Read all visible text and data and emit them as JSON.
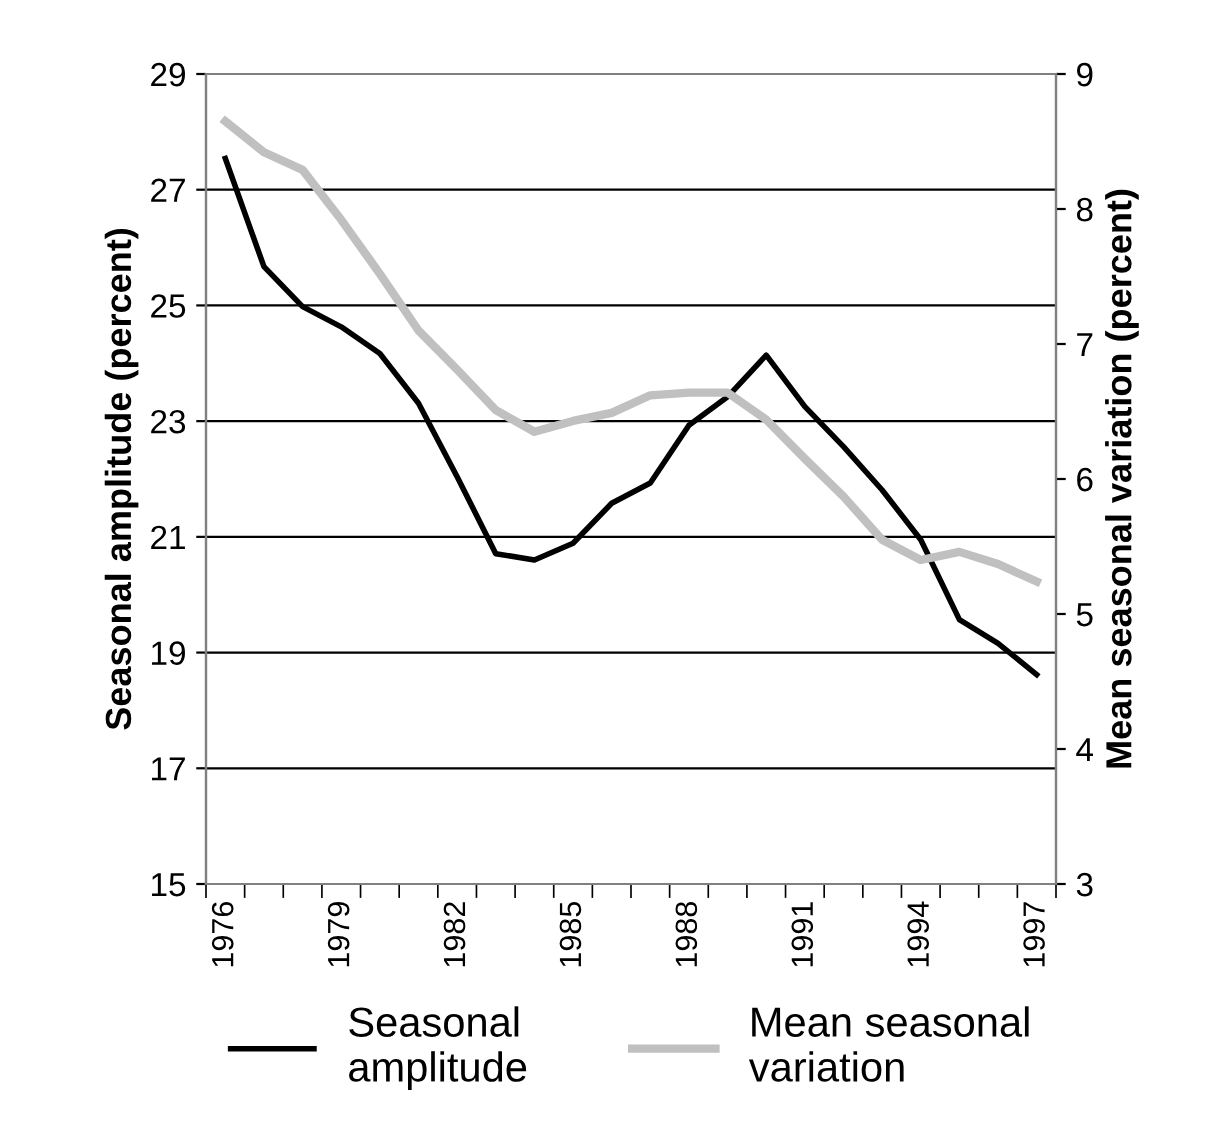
{
  "chart_data": {
    "type": "line",
    "ylabel": "Seasonal amplitude (percent)",
    "y2label": "Mean seasonal variation (percent)",
    "categories": [
      "1976",
      null,
      null,
      "1979",
      null,
      null,
      "1982",
      null,
      null,
      "1985",
      null,
      null,
      "1988",
      null,
      null,
      "1991",
      null,
      null,
      "1994",
      null,
      null,
      "1997"
    ],
    "series": [
      {
        "name": "Seasonal amplitude",
        "color": "#000000",
        "values": [
          27.54,
          25.67,
          24.98,
          24.63,
          24.17,
          23.31,
          22.04,
          20.71,
          20.6,
          20.89,
          21.58,
          21.93,
          22.93,
          23.42,
          24.14,
          23.25,
          22.56,
          21.81,
          20.95,
          19.57,
          19.16,
          18.62
        ]
      },
      {
        "name": "Mean seasonal variation",
        "color": "#c0c0c0",
        "axis": "y2",
        "values": [
          8.65,
          8.42,
          8.29,
          7.92,
          7.52,
          7.1,
          6.81,
          6.51,
          6.35,
          6.43,
          6.49,
          6.62,
          6.64,
          6.64,
          6.44,
          6.15,
          5.87,
          5.55,
          5.4,
          5.46,
          5.37,
          5.24
        ]
      }
    ],
    "ylim": [
      15,
      29
    ],
    "yticks": [
      15,
      17,
      19,
      21,
      23,
      25,
      27,
      29
    ],
    "y2lim": [
      3,
      9
    ],
    "y2ticks": [
      3,
      4,
      5,
      6,
      7,
      8,
      9
    ],
    "grid": "y",
    "legend": "bottom",
    "marker": "none",
    "line_style": "solid"
  }
}
